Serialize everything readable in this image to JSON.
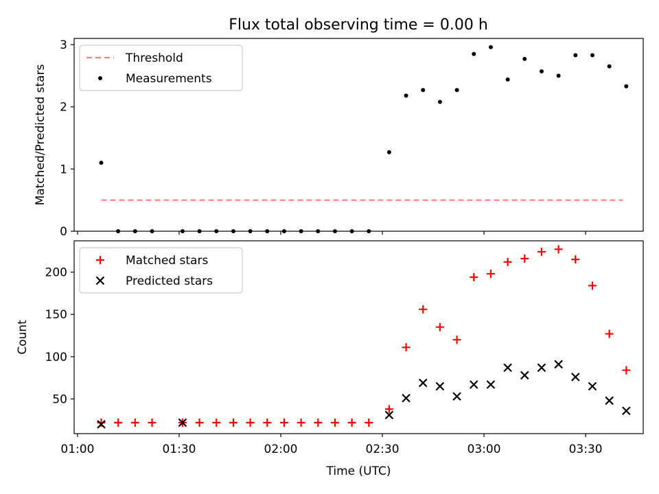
{
  "figure": {
    "title": "Flux total observing time = 0.00 h"
  },
  "chart_data": [
    {
      "type": "scatter",
      "title": "Flux total observing time = 0.00 h",
      "xlabel": "",
      "ylabel": "Matched/Predicted stars",
      "xlim": [
        "00:59",
        "03:47"
      ],
      "ylim": [
        0,
        3.1
      ],
      "yticks": [
        0,
        1,
        2,
        3
      ],
      "legend_position": "top-left",
      "series": [
        {
          "name": "Threshold",
          "kind": "dashed-line",
          "color": "#ff7f7f",
          "x": [
            "01:07",
            "03:41"
          ],
          "y": [
            0.5,
            0.5
          ]
        },
        {
          "name": "Measurements",
          "kind": "dot",
          "color": "#000000",
          "x": [
            "01:07",
            "01:12",
            "01:17",
            "01:22",
            "01:31",
            "01:36",
            "01:41",
            "01:46",
            "01:51",
            "01:56",
            "02:01",
            "02:06",
            "02:11",
            "02:16",
            "02:21",
            "02:26",
            "02:32",
            "02:37",
            "02:42",
            "02:47",
            "02:52",
            "02:57",
            "03:02",
            "03:07",
            "03:12",
            "03:17",
            "03:22",
            "03:27",
            "03:32",
            "03:37",
            "03:42"
          ],
          "y": [
            1.1,
            0,
            0,
            0,
            0,
            0,
            0,
            0,
            0,
            0,
            0,
            0,
            0,
            0,
            0,
            0,
            1.27,
            2.18,
            2.27,
            2.08,
            2.27,
            2.85,
            2.96,
            2.44,
            2.77,
            2.57,
            2.5,
            2.83,
            2.83,
            2.65,
            2.33
          ]
        }
      ]
    },
    {
      "type": "scatter",
      "title": "",
      "xlabel": "Time (UTC)",
      "ylabel": "Count",
      "xlim": [
        "00:59",
        "03:47"
      ],
      "ylim": [
        9,
        237
      ],
      "yticks": [
        50,
        100,
        150,
        200
      ],
      "xticks": [
        "01:00",
        "01:30",
        "02:00",
        "02:30",
        "03:00",
        "03:30"
      ],
      "legend_position": "top-left",
      "series": [
        {
          "name": "Matched stars",
          "kind": "plus",
          "color": "#ff0000",
          "x": [
            "01:07",
            "01:12",
            "01:17",
            "01:22",
            "01:31",
            "01:36",
            "01:41",
            "01:46",
            "01:51",
            "01:56",
            "02:01",
            "02:06",
            "02:11",
            "02:16",
            "02:21",
            "02:26",
            "02:32",
            "02:37",
            "02:42",
            "02:47",
            "02:52",
            "02:57",
            "03:02",
            "03:07",
            "03:12",
            "03:17",
            "03:22",
            "03:27",
            "03:32",
            "03:37",
            "03:42"
          ],
          "y": [
            22,
            22,
            22,
            22,
            22,
            22,
            22,
            22,
            22,
            22,
            22,
            22,
            22,
            22,
            22,
            22,
            38,
            111,
            156,
            135,
            120,
            194,
            198,
            212,
            216,
            224,
            227,
            215,
            184,
            127,
            84
          ]
        },
        {
          "name": "Predicted stars",
          "kind": "x",
          "color": "#000000",
          "x": [
            "01:07",
            "01:31",
            "02:32",
            "02:37",
            "02:42",
            "02:47",
            "02:52",
            "02:57",
            "03:02",
            "03:07",
            "03:12",
            "03:17",
            "03:22",
            "03:27",
            "03:32",
            "03:37",
            "03:42"
          ],
          "y": [
            20,
            22,
            31,
            51,
            69,
            65,
            53,
            67,
            67,
            87,
            78,
            87,
            91,
            76,
            65,
            48,
            36
          ]
        }
      ]
    }
  ]
}
